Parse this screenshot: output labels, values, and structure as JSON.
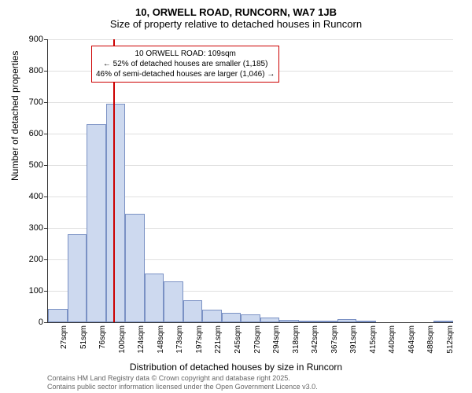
{
  "chart": {
    "type": "histogram",
    "title_main": "10, ORWELL ROAD, RUNCORN, WA7 1JB",
    "title_sub": "Size of property relative to detached houses in Runcorn",
    "y_axis_label": "Number of detached properties",
    "x_axis_label": "Distribution of detached houses by size in Runcorn",
    "ylim": [
      0,
      900
    ],
    "y_ticks": [
      0,
      100,
      200,
      300,
      400,
      500,
      600,
      700,
      800,
      900
    ],
    "x_labels": [
      "27sqm",
      "51sqm",
      "76sqm",
      "100sqm",
      "124sqm",
      "148sqm",
      "173sqm",
      "197sqm",
      "221sqm",
      "245sqm",
      "270sqm",
      "294sqm",
      "318sqm",
      "342sqm",
      "367sqm",
      "391sqm",
      "415sqm",
      "440sqm",
      "464sqm",
      "488sqm",
      "512sqm"
    ],
    "bar_values": [
      42,
      280,
      630,
      695,
      345,
      155,
      130,
      70,
      40,
      30,
      25,
      15,
      8,
      6,
      4,
      10,
      3,
      0,
      0,
      0,
      2
    ],
    "bar_fill_color": "#cdd9ef",
    "bar_border_color": "#7a91c4",
    "grid_color": "#e0e0e0",
    "background_color": "#ffffff",
    "reference_line": {
      "color": "#cc0000",
      "position_index": 3.4
    },
    "annotation": {
      "line1": "10 ORWELL ROAD: 109sqm",
      "line2": "← 52% of detached houses are smaller (1,185)",
      "line3": "46% of semi-detached houses are larger (1,046) →",
      "border_color": "#cc0000"
    },
    "footer_line1": "Contains HM Land Registry data © Crown copyright and database right 2025.",
    "footer_line2": "Contains public sector information licensed under the Open Government Licence v3.0.",
    "title_fontsize": 13,
    "label_fontsize": 12,
    "tick_fontsize": 11,
    "footer_color": "#666666"
  }
}
